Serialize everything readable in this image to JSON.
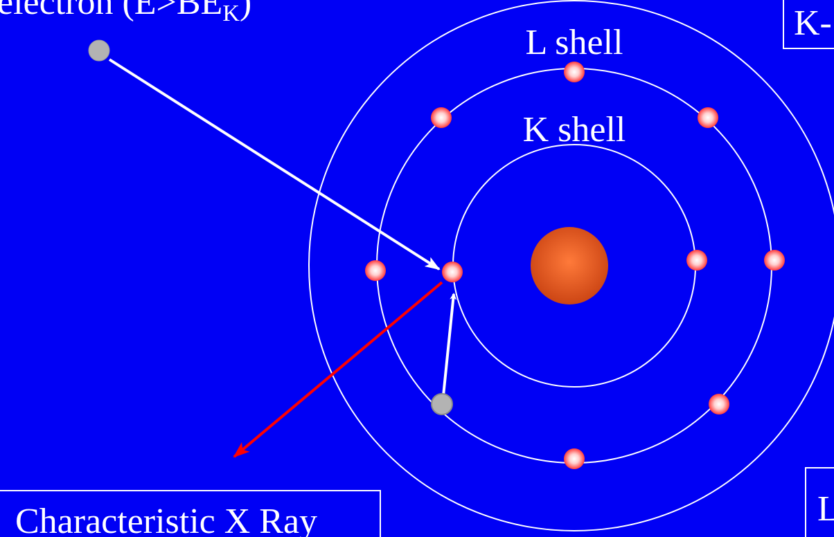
{
  "labels": {
    "incident_electron_main": "electron (E>BE",
    "incident_electron_sub": "K",
    "incident_electron_close": ")",
    "l_shell": "L shell",
    "k_shell": "K shell",
    "characteristic_xray": "Characteristic X Ray",
    "top_right_box": "K-",
    "bottom_right_box": "L"
  },
  "colors": {
    "background": "#0000f5",
    "electron_red": "#ff3a3a",
    "electron_highlight": "#ffffff",
    "electron_gray": "#b3b3b3",
    "nucleus": "#d84a1a",
    "nucleus_highlight": "#ff7a3a",
    "xray_arrow": "#ff0000",
    "lines": "#ffffff"
  }
}
